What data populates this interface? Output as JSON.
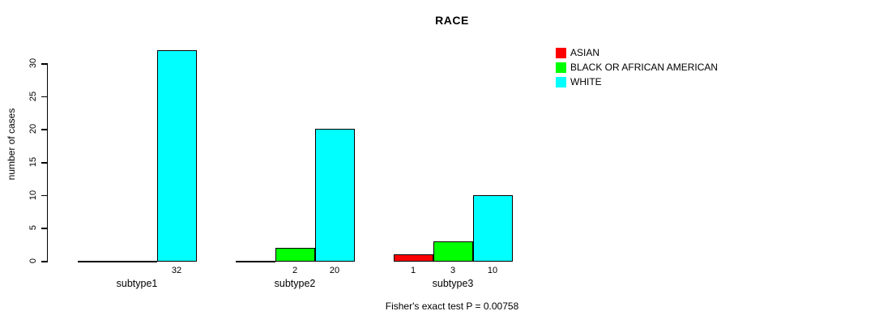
{
  "chart_data": {
    "type": "bar",
    "title": "RACE",
    "ylabel": "number of cases",
    "xlabel": "",
    "footnote": "Fisher's exact test P = 0.00758",
    "categories": [
      "subtype1",
      "subtype2",
      "subtype3"
    ],
    "series": [
      {
        "name": "ASIAN",
        "color": "#ff0000",
        "values": [
          0,
          0,
          1
        ]
      },
      {
        "name": "BLACK OR AFRICAN AMERICAN",
        "color": "#00ff00",
        "values": [
          0,
          2,
          3
        ]
      },
      {
        "name": "WHITE",
        "color": "#00ffff",
        "values": [
          32,
          20,
          10
        ]
      }
    ],
    "bar_value_labels_rule": "value shown under each bar when value > 0",
    "visible_bar_labels": [
      "32",
      "2",
      "20",
      "1",
      "3",
      "10"
    ],
    "yticks": [
      0,
      5,
      10,
      15,
      20,
      25,
      30
    ],
    "ylim": [
      0,
      30
    ],
    "grid": false,
    "legend_position": "top-right",
    "bar_border_color": "#000000",
    "axis_color": "#000000",
    "text_color": "#000000",
    "background": "#ffffff"
  }
}
